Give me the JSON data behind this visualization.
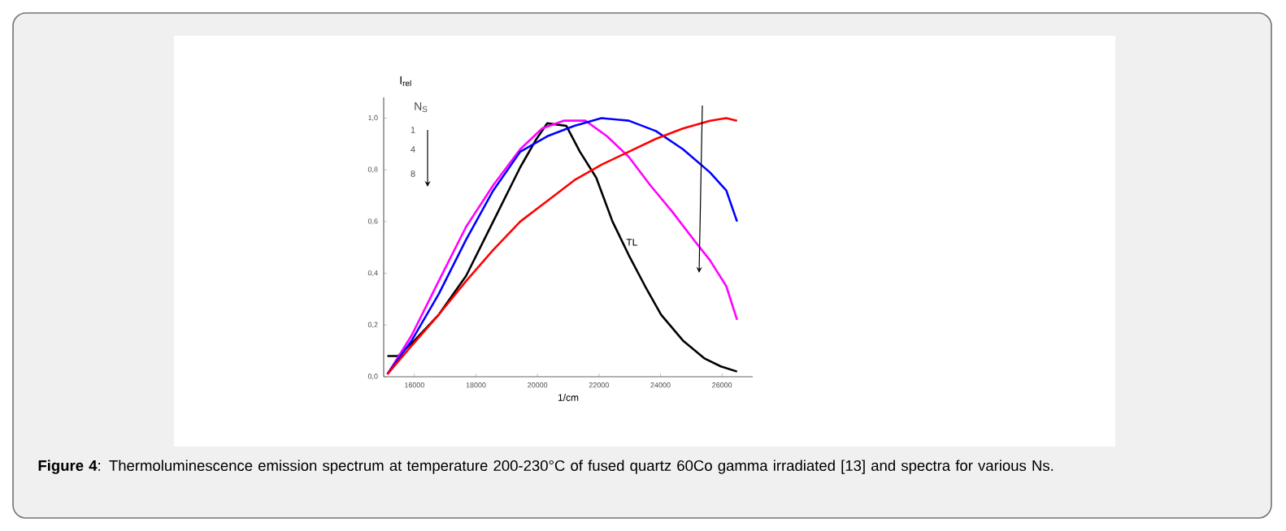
{
  "chart_data": {
    "type": "line",
    "xlabel": "1/cm",
    "ylabel": "I$_{rel}$",
    "xlim": [
      15000,
      27000
    ],
    "ylim": [
      0,
      1.08
    ],
    "xticks": [
      16000,
      18000,
      20000,
      22000,
      24000,
      26000
    ],
    "yticks": [
      {
        "value": 0,
        "label": "0,0"
      },
      {
        "value": 0.2,
        "label": "0,2"
      },
      {
        "value": 0.4,
        "label": "0,4"
      },
      {
        "value": 0.6,
        "label": "0,6"
      },
      {
        "value": 0.8,
        "label": "0,8"
      },
      {
        "value": 1.0,
        "label": "1,0"
      }
    ],
    "grid": false,
    "legend": false,
    "marker": "none",
    "line_style": "solid",
    "annotations": [
      "N$_{S}$",
      "1",
      "4",
      "8",
      "**Figure 4**: Thermoluminescence emission spectrum at temperature 200-230°C of fused quartz 60Co gamma irradiated [13] and spectra for various Ns."
    ],
    "series": [
      {
        "name": "TL",
        "color": "#000000",
        "x": [
          15120,
          15470,
          16000,
          16790,
          17680,
          18560,
          19440,
          19970,
          20320,
          20940,
          21380,
          21910,
          22440,
          22970,
          23500,
          24020,
          24730,
          25440,
          25960,
          26490
        ],
        "values": [
          0.08,
          0.08,
          0.14,
          0.24,
          0.39,
          0.6,
          0.81,
          0.92,
          0.98,
          0.97,
          0.87,
          0.77,
          0.6,
          0.47,
          0.35,
          0.24,
          0.14,
          0.07,
          0.04,
          0.02
        ]
      },
      {
        "color": "#ff00ff",
        "x": [
          15120,
          15910,
          16790,
          17680,
          18560,
          19440,
          20150,
          20850,
          21560,
          22260,
          22970,
          23670,
          24370,
          25080,
          25610,
          26140,
          26490
        ],
        "values": [
          0.01,
          0.16,
          0.37,
          0.58,
          0.74,
          0.88,
          0.96,
          0.99,
          0.99,
          0.93,
          0.85,
          0.74,
          0.64,
          0.53,
          0.45,
          0.35,
          0.22
        ]
      },
      {
        "color": "#0000ff",
        "x": [
          15120,
          15910,
          16790,
          17680,
          18560,
          19440,
          20320,
          21200,
          22080,
          22970,
          23850,
          24730,
          25610,
          26140,
          26490
        ],
        "values": [
          0.01,
          0.14,
          0.32,
          0.53,
          0.72,
          0.87,
          0.93,
          0.97,
          1.0,
          0.99,
          0.95,
          0.88,
          0.79,
          0.72,
          0.6
        ]
      },
      {
        "color": "#ff0000",
        "x": [
          15120,
          15910,
          16790,
          17680,
          18560,
          19440,
          20320,
          21200,
          22080,
          22970,
          23850,
          24730,
          25610,
          26140,
          26490
        ],
        "values": [
          0.01,
          0.12,
          0.24,
          0.37,
          0.49,
          0.6,
          0.68,
          0.76,
          0.82,
          0.87,
          0.92,
          0.96,
          0.99,
          1.0,
          0.99
        ]
      }
    ]
  }
}
